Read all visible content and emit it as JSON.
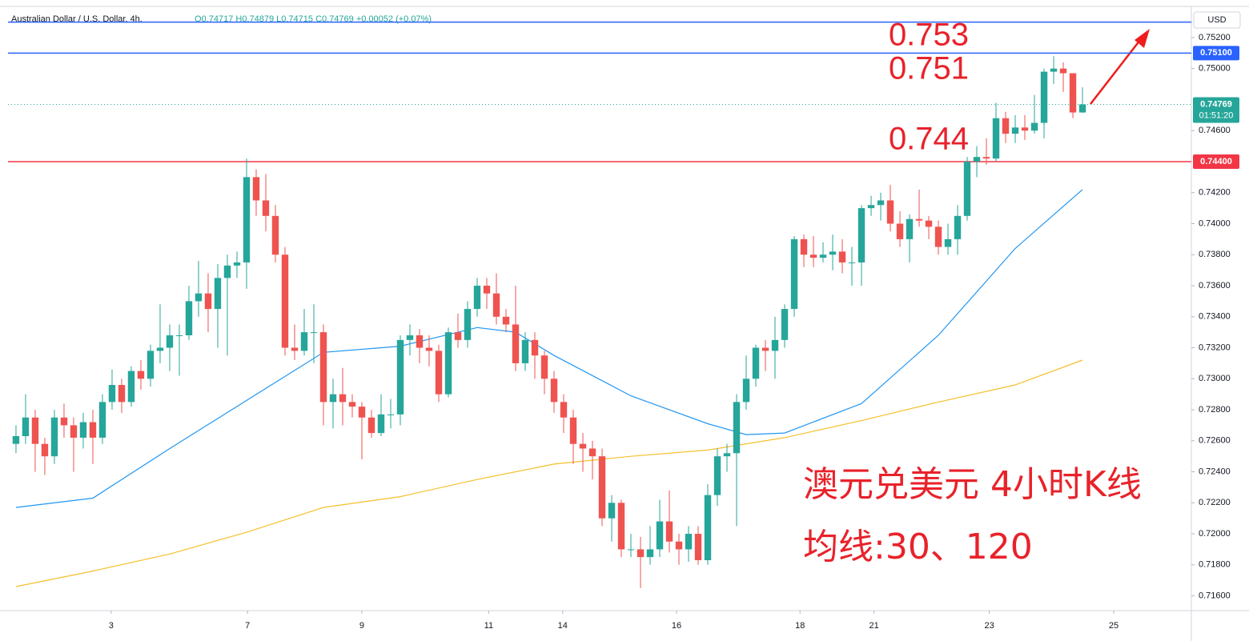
{
  "chart_data": {
    "type": "candlestick",
    "title": "Australian Dollar / U.S. Dollar, 4h,",
    "ohlc_text": "O0.74717  H0.74879  L0.74715  C0.74769  +0.00052 (+0.07%)",
    "currency": "USD",
    "annotations": [
      "0.753",
      "0.751",
      "0.744"
    ],
    "notes": [
      "澳元兑美元 4小时K线",
      "均线:30、120"
    ],
    "up_color": "#26a69a",
    "down_color": "#ef5350",
    "ylim": [
      0.71505,
      0.75401
    ],
    "xlim": [
      -0.83,
      122.33
    ],
    "yticks": [
      {
        "value": 0.716,
        "label": "0.71600"
      },
      {
        "value": 0.718,
        "label": "0.71800"
      },
      {
        "value": 0.72,
        "label": "0.72000"
      },
      {
        "value": 0.722,
        "label": "0.72200"
      },
      {
        "value": 0.724,
        "label": "0.72400"
      },
      {
        "value": 0.726,
        "label": "0.72600"
      },
      {
        "value": 0.728,
        "label": "0.72800"
      },
      {
        "value": 0.73,
        "label": "0.73000"
      },
      {
        "value": 0.732,
        "label": "0.73200"
      },
      {
        "value": 0.734,
        "label": "0.73400"
      },
      {
        "value": 0.736,
        "label": "0.73600"
      },
      {
        "value": 0.738,
        "label": "0.73800"
      },
      {
        "value": 0.74,
        "label": "0.74000"
      },
      {
        "value": 0.742,
        "label": "0.74200"
      },
      {
        "value": 0.746,
        "label": "0.74600"
      },
      {
        "value": 0.75,
        "label": "0.75000"
      },
      {
        "value": 0.752,
        "label": "0.75200"
      }
    ],
    "xticks": [
      {
        "value": 9.9,
        "label": "3"
      },
      {
        "value": 24.1,
        "label": "7"
      },
      {
        "value": 36,
        "label": "9"
      },
      {
        "value": 49.2,
        "label": "11"
      },
      {
        "value": 56.9,
        "label": "14"
      },
      {
        "value": 68.75,
        "label": "16"
      },
      {
        "value": 81.6,
        "label": "18"
      },
      {
        "value": 89.3,
        "label": "21"
      },
      {
        "value": 101.3,
        "label": "23"
      },
      {
        "value": 114.25,
        "label": "25"
      }
    ],
    "hlines": [
      {
        "value": 0.753,
        "color": "#2962ff"
      },
      {
        "value": 0.751,
        "label": "0.75100",
        "color": "#2962ff"
      },
      {
        "value": 0.744,
        "label": "0.74400",
        "color": "#f23645"
      }
    ],
    "last_price": {
      "value": 0.74769,
      "label": "0.74769",
      "countdown": "01:51:20",
      "color": "#26a69a"
    },
    "series": [
      {
        "open": [
          0.7258,
          0.7263,
          0.7275,
          0.7258,
          0.725,
          0.7275,
          0.727,
          0.7262,
          0.7272,
          0.7262,
          0.7285,
          0.7296,
          0.7285,
          0.7305,
          0.73,
          0.7318,
          0.732,
          0.7328,
          0.7328,
          0.735,
          0.7355,
          0.7345,
          0.7365,
          0.7373,
          0.7375,
          0.743,
          0.7415,
          0.7405,
          0.738,
          0.732,
          0.7318,
          0.733,
          0.733,
          0.7285,
          0.729,
          0.7285,
          0.7282,
          0.7275,
          0.7265,
          0.7277,
          0.7277,
          0.7325,
          0.7328,
          0.732,
          0.7318,
          0.729,
          0.733,
          0.7325,
          0.7345,
          0.736,
          0.7355,
          0.734,
          0.7335,
          0.731,
          0.7325,
          0.7315,
          0.73,
          0.7285,
          0.7275,
          0.7258,
          0.7255,
          0.725,
          0.721,
          0.722,
          0.719,
          0.719,
          0.7185,
          0.719,
          0.7208,
          0.7195,
          0.719,
          0.72,
          0.7183,
          0.7225,
          0.725,
          0.7252,
          0.7285,
          0.73,
          0.732,
          0.7318,
          0.7325,
          0.7345,
          0.739,
          0.738,
          0.7378,
          0.738,
          0.7382,
          0.7375,
          0.7375,
          0.741,
          0.7412,
          0.7415,
          0.74,
          0.739,
          0.7403,
          0.7402,
          0.7398,
          0.7385,
          0.739,
          0.7405,
          0.744,
          0.7443,
          0.7442,
          0.7468,
          0.7458,
          0.7462,
          0.746,
          0.7465,
          0.7498,
          0.75,
          0.7497,
          0.74717
        ],
        "high": [
          0.727,
          0.729,
          0.728,
          0.7262,
          0.728,
          0.7284,
          0.7275,
          0.7278,
          0.728,
          0.729,
          0.7306,
          0.73,
          0.7308,
          0.7312,
          0.7322,
          0.7348,
          0.7335,
          0.7335,
          0.736,
          0.7376,
          0.7368,
          0.7374,
          0.738,
          0.7382,
          0.7442,
          0.7435,
          0.7432,
          0.7412,
          0.7385,
          0.7335,
          0.7345,
          0.7348,
          0.7335,
          0.73,
          0.7307,
          0.729,
          0.7285,
          0.728,
          0.729,
          0.7287,
          0.7328,
          0.7335,
          0.7332,
          0.7328,
          0.7322,
          0.7333,
          0.7342,
          0.735,
          0.7365,
          0.7365,
          0.7368,
          0.7345,
          0.736,
          0.733,
          0.733,
          0.7318,
          0.7305,
          0.729,
          0.728,
          0.7265,
          0.726,
          0.7255,
          0.7225,
          0.7222,
          0.72,
          0.7198,
          0.7205,
          0.7222,
          0.7228,
          0.72,
          0.7205,
          0.7205,
          0.7232,
          0.7255,
          0.7258,
          0.729,
          0.7315,
          0.7322,
          0.7325,
          0.734,
          0.7348,
          0.7392,
          0.7393,
          0.7392,
          0.7388,
          0.7393,
          0.739,
          0.7385,
          0.7412,
          0.7418,
          0.742,
          0.7425,
          0.7408,
          0.7406,
          0.7422,
          0.7405,
          0.7402,
          0.74,
          0.7412,
          0.7443,
          0.745,
          0.7455,
          0.7478,
          0.7472,
          0.747,
          0.747,
          0.7483,
          0.75,
          0.7508,
          0.7504,
          0.7495,
          0.74879
        ],
        "low": [
          0.7252,
          0.7258,
          0.724,
          0.7238,
          0.7245,
          0.7262,
          0.724,
          0.7255,
          0.7245,
          0.7258,
          0.728,
          0.7278,
          0.7282,
          0.7293,
          0.7295,
          0.731,
          0.7305,
          0.7302,
          0.7325,
          0.734,
          0.733,
          0.732,
          0.7315,
          0.7365,
          0.7358,
          0.7405,
          0.7395,
          0.7375,
          0.7315,
          0.7312,
          0.7315,
          0.731,
          0.727,
          0.7268,
          0.727,
          0.7275,
          0.7248,
          0.7262,
          0.7263,
          0.7268,
          0.727,
          0.7315,
          0.731,
          0.7308,
          0.7285,
          0.7288,
          0.732,
          0.732,
          0.734,
          0.7345,
          0.7335,
          0.733,
          0.7305,
          0.7305,
          0.73,
          0.729,
          0.7278,
          0.7265,
          0.7245,
          0.724,
          0.7235,
          0.7205,
          0.7195,
          0.7185,
          0.7185,
          0.7165,
          0.718,
          0.7185,
          0.7188,
          0.718,
          0.7182,
          0.718,
          0.718,
          0.7218,
          0.724,
          0.7205,
          0.728,
          0.7295,
          0.7305,
          0.73,
          0.732,
          0.734,
          0.7372,
          0.7372,
          0.7375,
          0.737,
          0.7368,
          0.736,
          0.736,
          0.7405,
          0.7402,
          0.7395,
          0.7385,
          0.7375,
          0.7398,
          0.739,
          0.738,
          0.738,
          0.738,
          0.7402,
          0.743,
          0.7438,
          0.744,
          0.7452,
          0.7452,
          0.7454,
          0.7458,
          0.7455,
          0.749,
          0.7485,
          0.7468,
          0.74715
        ],
        "close": [
          0.7263,
          0.7275,
          0.7258,
          0.725,
          0.7275,
          0.727,
          0.7262,
          0.7272,
          0.7262,
          0.7285,
          0.7296,
          0.7285,
          0.7305,
          0.73,
          0.7318,
          0.732,
          0.7328,
          0.7328,
          0.735,
          0.7355,
          0.7345,
          0.7365,
          0.7373,
          0.7375,
          0.743,
          0.7415,
          0.7405,
          0.738,
          0.732,
          0.7318,
          0.733,
          0.733,
          0.7285,
          0.729,
          0.7285,
          0.7282,
          0.7275,
          0.7265,
          0.7277,
          0.7277,
          0.7325,
          0.7328,
          0.732,
          0.7318,
          0.729,
          0.733,
          0.7325,
          0.7345,
          0.736,
          0.7355,
          0.734,
          0.7335,
          0.731,
          0.7325,
          0.7315,
          0.73,
          0.7285,
          0.7275,
          0.7258,
          0.7255,
          0.725,
          0.721,
          0.722,
          0.719,
          0.719,
          0.7185,
          0.719,
          0.7208,
          0.7195,
          0.719,
          0.72,
          0.7183,
          0.7225,
          0.725,
          0.7252,
          0.7285,
          0.73,
          0.732,
          0.7318,
          0.7325,
          0.7345,
          0.739,
          0.738,
          0.7378,
          0.738,
          0.7382,
          0.7375,
          0.7375,
          0.741,
          0.7412,
          0.7415,
          0.74,
          0.739,
          0.7403,
          0.7402,
          0.7398,
          0.7385,
          0.739,
          0.7405,
          0.744,
          0.7443,
          0.7442,
          0.7468,
          0.7458,
          0.7462,
          0.746,
          0.7465,
          0.7498,
          0.75,
          0.7497,
          0.74717,
          0.74769
        ]
      }
    ],
    "lines": [
      {
        "color": "#2196f3",
        "x": [
          0,
          8,
          16,
          24,
          32,
          40,
          48,
          52,
          56,
          64,
          72,
          76,
          80,
          88,
          96,
          104,
          111
        ],
        "values": [
          0.7217,
          0.7223,
          0.7255,
          0.7286,
          0.7317,
          0.7321,
          0.7333,
          0.733,
          0.7315,
          0.7289,
          0.7271,
          0.7264,
          0.7265,
          0.7284,
          0.7328,
          0.7384,
          0.7422
        ]
      },
      {
        "color": "#f5c02b",
        "x": [
          0,
          8,
          16,
          24,
          32,
          40,
          48,
          56,
          64,
          72,
          80,
          88,
          96,
          104,
          111
        ],
        "values": [
          0.7166,
          0.7176,
          0.7187,
          0.7201,
          0.7217,
          0.7224,
          0.7235,
          0.7245,
          0.725,
          0.7254,
          0.7262,
          0.7273,
          0.7285,
          0.7296,
          0.7312
        ]
      }
    ]
  }
}
